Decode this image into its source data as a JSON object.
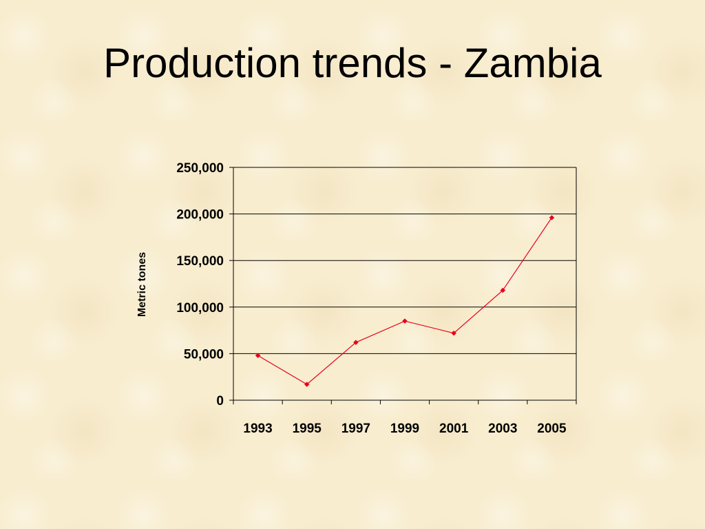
{
  "slide": {
    "title": "Production trends - Zambia"
  },
  "chart_data": {
    "type": "line",
    "title": "",
    "xlabel": "",
    "ylabel": "Metric tones",
    "x": [
      1993,
      1995,
      1997,
      1999,
      2001,
      2003,
      2005
    ],
    "series": [
      {
        "name": "",
        "values": [
          48000,
          17000,
          62000,
          85000,
          72000,
          118000,
          196000
        ],
        "color": "#e8001c"
      }
    ],
    "ylim": [
      0,
      250000
    ],
    "yticks": [
      0,
      50000,
      100000,
      150000,
      200000,
      250000
    ],
    "ytick_labels": [
      "0",
      "50,000",
      "100,000",
      "150,000",
      "200,000",
      "250,000"
    ],
    "xtick_labels": [
      "1993",
      "1995",
      "1997",
      "1999",
      "2001",
      "2003",
      "2005"
    ],
    "grid": "horizontal",
    "legend": "none",
    "marker": "diamond"
  }
}
